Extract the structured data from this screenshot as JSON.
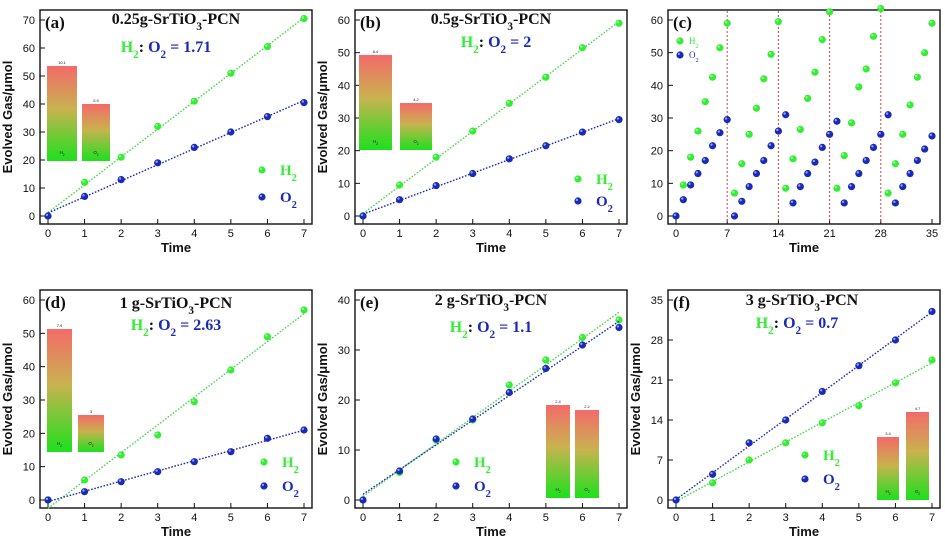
{
  "colors": {
    "h2": "#33ee33",
    "o2": "#1a2ab8",
    "h2_line": "#4ad84a",
    "o2_line": "#1a2ab8",
    "cycle_line": "#cc4444"
  },
  "chart_data": [
    {
      "type": "scatter",
      "panel": "(a)",
      "title": "0.25g-SrTiO3-PCN",
      "ratio": "H2:  O2 = 1.71",
      "xlabel": "Time",
      "ylabel": "Evolved Gas/μmol",
      "xlim": [
        0,
        7
      ],
      "ylim": [
        0,
        70
      ],
      "xticks": [
        0,
        1,
        2,
        3,
        4,
        5,
        6,
        7
      ],
      "yticks": [
        0,
        10,
        20,
        30,
        40,
        50,
        60,
        70
      ],
      "legend_position": "bottom-right",
      "series": [
        {
          "name": "H2",
          "x": [
            0,
            1,
            2,
            3,
            4,
            5,
            6,
            7
          ],
          "y": [
            0,
            12,
            21,
            32,
            41,
            51,
            60.5,
            70.5
          ],
          "fit": true
        },
        {
          "name": "O2",
          "x": [
            0,
            1,
            2,
            3,
            4,
            5,
            6,
            7
          ],
          "y": [
            0,
            7,
            13,
            19,
            24.5,
            30,
            35.5,
            40.5
          ],
          "fit": true
        }
      ],
      "inset": {
        "bars": [
          {
            "label": "H2",
            "value": "10.1",
            "h": 10.1
          },
          {
            "label": "O2",
            "value": "5.9",
            "h": 5.9
          }
        ]
      }
    },
    {
      "type": "scatter",
      "panel": "(b)",
      "title": "0.5g-SrTiO3-PCN",
      "ratio": "H2:  O2 = 2",
      "xlabel": "Time",
      "ylabel": "Evolved Gas/μmol",
      "xlim": [
        0,
        7
      ],
      "ylim": [
        0,
        60
      ],
      "xticks": [
        0,
        1,
        2,
        3,
        4,
        5,
        6,
        7
      ],
      "yticks": [
        0,
        10,
        20,
        30,
        40,
        50,
        60
      ],
      "legend_position": "bottom-right",
      "series": [
        {
          "name": "H2",
          "x": [
            0,
            1,
            2,
            3,
            4,
            5,
            6,
            7
          ],
          "y": [
            0,
            9.5,
            18,
            26,
            34.5,
            42.5,
            51.5,
            59
          ],
          "fit": true
        },
        {
          "name": "O2",
          "x": [
            0,
            1,
            2,
            3,
            4,
            5,
            6,
            7
          ],
          "y": [
            0,
            5,
            9.3,
            13,
            17.5,
            21.5,
            25.7,
            29.5
          ],
          "fit": true
        }
      ],
      "inset": {
        "bars": [
          {
            "label": "H2",
            "value": "8.4",
            "h": 8.4
          },
          {
            "label": "O2",
            "value": "4.2",
            "h": 4.2
          }
        ]
      }
    },
    {
      "type": "scatter",
      "panel": "(c)",
      "title": "",
      "ratio": "",
      "xlabel": "Time",
      "ylabel": "",
      "xlim": [
        0,
        35
      ],
      "ylim": [
        0,
        60
      ],
      "xticks": [
        0,
        7,
        14,
        21,
        28,
        35
      ],
      "yticks": [
        0,
        10,
        20,
        30,
        40,
        50,
        60
      ],
      "cycle_lines": [
        7,
        14,
        21,
        28
      ],
      "legend_position": "top-left",
      "series": [
        {
          "name": "H2",
          "x": [
            0,
            1,
            2,
            3,
            4,
            5,
            6,
            7,
            8,
            9,
            10,
            11,
            12,
            13,
            14,
            15,
            16,
            17,
            18,
            19,
            20,
            21,
            22,
            23,
            24,
            25,
            26,
            27,
            28,
            29,
            30,
            31,
            32,
            33,
            34,
            35
          ],
          "y": [
            0,
            9.5,
            18,
            26,
            35,
            42.5,
            51.5,
            59,
            7,
            16,
            25,
            33,
            42,
            49.5,
            59.5,
            8.5,
            17.5,
            26.5,
            36,
            44,
            54,
            62.5,
            8.5,
            18.5,
            28.5,
            39.5,
            45,
            55,
            63.5,
            7,
            16,
            25,
            34,
            42.5,
            50,
            59
          ],
          "fit": false
        },
        {
          "name": "O2",
          "x": [
            0,
            1,
            2,
            3,
            4,
            5,
            6,
            7,
            8,
            9,
            10,
            11,
            12,
            13,
            14,
            15,
            16,
            17,
            18,
            19,
            20,
            21,
            22,
            23,
            24,
            25,
            26,
            27,
            28,
            29,
            30,
            31,
            32,
            33,
            34,
            35
          ],
          "y": [
            0,
            5,
            9.5,
            13,
            17,
            21.5,
            25.5,
            29.5,
            0,
            4.5,
            9,
            13,
            17,
            21.5,
            26,
            31,
            4,
            9,
            13,
            16.5,
            21,
            25,
            29,
            4,
            9,
            13,
            17,
            21,
            25,
            31,
            4,
            9,
            13,
            17,
            20.5,
            24.5
          ],
          "fit": false
        }
      ]
    },
    {
      "type": "scatter",
      "panel": "(d)",
      "title": "1 g-SrTiO3-PCN",
      "ratio": "H2:  O2 = 2.63",
      "xlabel": "Time",
      "ylabel": "Evolved Gas/μmol",
      "xlim": [
        0,
        7
      ],
      "ylim": [
        0,
        60
      ],
      "xticks": [
        0,
        1,
        2,
        3,
        4,
        5,
        6,
        7
      ],
      "yticks": [
        0,
        10,
        20,
        30,
        40,
        50,
        60
      ],
      "legend_position": "bottom-right",
      "series": [
        {
          "name": "H2",
          "x": [
            0,
            1,
            2,
            3,
            4,
            5,
            6,
            7
          ],
          "y": [
            0,
            6,
            13.5,
            19.5,
            29.5,
            39,
            49,
            57
          ],
          "fit": true
        },
        {
          "name": "O2",
          "x": [
            0,
            1,
            2,
            3,
            4,
            5,
            6,
            7
          ],
          "y": [
            0,
            2.5,
            5.5,
            8.5,
            11.5,
            14.5,
            18.5,
            21
          ],
          "fit": true
        }
      ],
      "inset": {
        "bars": [
          {
            "label": "H2",
            "value": "7.9",
            "h": 7.9
          },
          {
            "label": "O2",
            "value": "3",
            "h": 3
          }
        ]
      }
    },
    {
      "type": "scatter",
      "panel": "(e)",
      "title": "2 g-SrTiO3-PCN",
      "ratio": "H2:  O2 = 1.1",
      "xlabel": "Time",
      "ylabel": "Evolved Gas/μmol",
      "xlim": [
        0,
        7
      ],
      "ylim": [
        0,
        40
      ],
      "xticks": [
        0,
        1,
        2,
        3,
        4,
        5,
        6,
        7
      ],
      "yticks": [
        0,
        10,
        20,
        30,
        40
      ],
      "legend_position": "bottom-center",
      "series": [
        {
          "name": "H2",
          "x": [
            0,
            1,
            2,
            3,
            4,
            5,
            6,
            7
          ],
          "y": [
            0,
            5.5,
            12,
            16,
            23,
            28,
            32.5,
            36
          ],
          "fit": true
        },
        {
          "name": "O2",
          "x": [
            0,
            1,
            2,
            3,
            4,
            5,
            6,
            7
          ],
          "y": [
            0,
            5.8,
            12.2,
            16.2,
            21.5,
            26.3,
            31,
            34.5
          ],
          "fit": true
        }
      ],
      "inset": {
        "bars": [
          {
            "label": "H2",
            "value": "2.4",
            "h": 2.4
          },
          {
            "label": "O2",
            "value": "2.2",
            "h": 2.2
          }
        ]
      }
    },
    {
      "type": "scatter",
      "panel": "(f)",
      "title": "3 g-SrTiO3-PCN",
      "ratio": "H2:  O2 = 0.7",
      "xlabel": "Time",
      "ylabel": "Evolved Gas/μmol",
      "xlim": [
        0,
        7
      ],
      "ylim": [
        0,
        35
      ],
      "xticks": [
        0,
        1,
        2,
        3,
        4,
        5,
        6,
        7
      ],
      "yticks": [
        0,
        7,
        14,
        21,
        28,
        35
      ],
      "legend_position": "bottom-center",
      "series": [
        {
          "name": "H2",
          "x": [
            0,
            1,
            2,
            3,
            4,
            5,
            6,
            7
          ],
          "y": [
            0,
            3,
            7,
            10,
            13.5,
            16.5,
            20.5,
            24.5
          ],
          "fit": true
        },
        {
          "name": "O2",
          "x": [
            0,
            1,
            2,
            3,
            4,
            5,
            6,
            7
          ],
          "y": [
            0,
            4.5,
            10,
            14,
            19,
            23.5,
            28,
            33
          ],
          "fit": true
        }
      ],
      "inset": {
        "bars": [
          {
            "label": "H2",
            "value": "3.4",
            "h": 3.4
          },
          {
            "label": "O2",
            "value": "4.7",
            "h": 4.7
          }
        ]
      }
    }
  ]
}
